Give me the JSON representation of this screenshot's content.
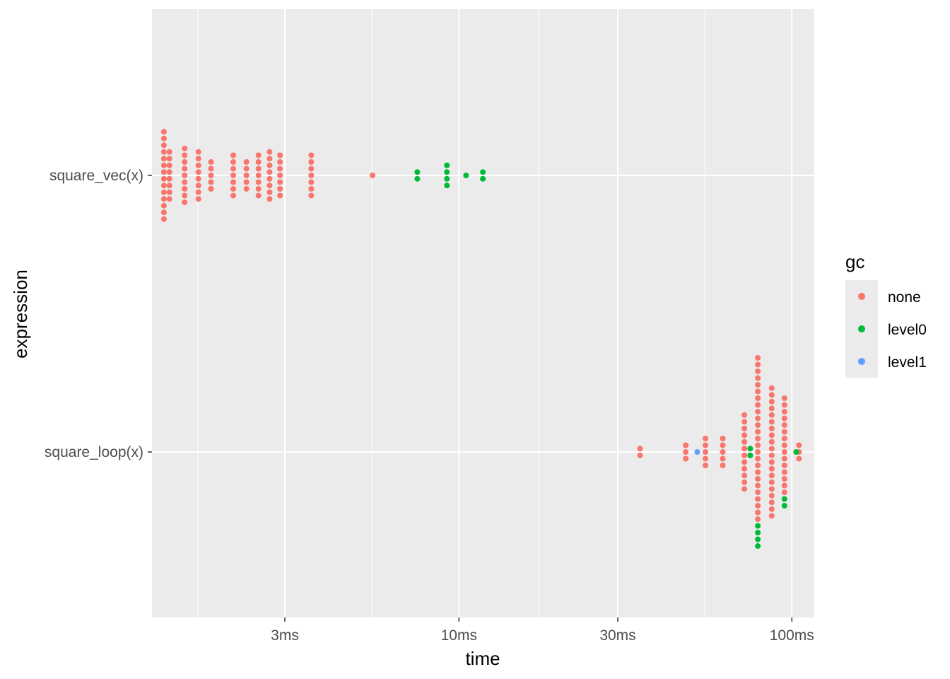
{
  "chart_data": {
    "type": "scatter",
    "subtype": "beeswarm",
    "xlabel": "time",
    "ylabel": "expression",
    "x_scale": "log10",
    "x_unit": "ms",
    "xlim": [
      1.0,
      120.0
    ],
    "x_ticks": [
      {
        "value": 3,
        "label": "3ms"
      },
      {
        "value": 10,
        "label": "10ms"
      },
      {
        "value": 30,
        "label": "30ms"
      },
      {
        "value": 100,
        "label": "100ms"
      }
    ],
    "categories": [
      "square_vec(x)",
      "square_loop(x)"
    ],
    "legend": {
      "title": "gc",
      "position": "right"
    },
    "series": [
      {
        "name": "none",
        "color": "#f8766d",
        "points": [
          [
            "square_vec(x)",
            1.3
          ],
          [
            "square_vec(x)",
            1.3
          ],
          [
            "square_vec(x)",
            1.3
          ],
          [
            "square_vec(x)",
            1.3
          ],
          [
            "square_vec(x)",
            1.3
          ],
          [
            "square_vec(x)",
            1.3
          ],
          [
            "square_vec(x)",
            1.3
          ],
          [
            "square_vec(x)",
            1.3
          ],
          [
            "square_vec(x)",
            1.3
          ],
          [
            "square_vec(x)",
            1.3
          ],
          [
            "square_vec(x)",
            1.3
          ],
          [
            "square_vec(x)",
            1.3
          ],
          [
            "square_vec(x)",
            1.3
          ],
          [
            "square_vec(x)",
            1.3
          ],
          [
            "square_vec(x)",
            1.35
          ],
          [
            "square_vec(x)",
            1.35
          ],
          [
            "square_vec(x)",
            1.35
          ],
          [
            "square_vec(x)",
            1.35
          ],
          [
            "square_vec(x)",
            1.35
          ],
          [
            "square_vec(x)",
            1.35
          ],
          [
            "square_vec(x)",
            1.35
          ],
          [
            "square_vec(x)",
            1.35
          ],
          [
            "square_vec(x)",
            1.5
          ],
          [
            "square_vec(x)",
            1.5
          ],
          [
            "square_vec(x)",
            1.5
          ],
          [
            "square_vec(x)",
            1.5
          ],
          [
            "square_vec(x)",
            1.5
          ],
          [
            "square_vec(x)",
            1.5
          ],
          [
            "square_vec(x)",
            1.5
          ],
          [
            "square_vec(x)",
            1.5
          ],
          [
            "square_vec(x)",
            1.5
          ],
          [
            "square_vec(x)",
            1.65
          ],
          [
            "square_vec(x)",
            1.65
          ],
          [
            "square_vec(x)",
            1.65
          ],
          [
            "square_vec(x)",
            1.65
          ],
          [
            "square_vec(x)",
            1.65
          ],
          [
            "square_vec(x)",
            1.65
          ],
          [
            "square_vec(x)",
            1.65
          ],
          [
            "square_vec(x)",
            1.65
          ],
          [
            "square_vec(x)",
            1.8
          ],
          [
            "square_vec(x)",
            1.8
          ],
          [
            "square_vec(x)",
            1.8
          ],
          [
            "square_vec(x)",
            1.8
          ],
          [
            "square_vec(x)",
            1.8
          ],
          [
            "square_vec(x)",
            2.1
          ],
          [
            "square_vec(x)",
            2.1
          ],
          [
            "square_vec(x)",
            2.1
          ],
          [
            "square_vec(x)",
            2.1
          ],
          [
            "square_vec(x)",
            2.1
          ],
          [
            "square_vec(x)",
            2.1
          ],
          [
            "square_vec(x)",
            2.1
          ],
          [
            "square_vec(x)",
            2.3
          ],
          [
            "square_vec(x)",
            2.3
          ],
          [
            "square_vec(x)",
            2.3
          ],
          [
            "square_vec(x)",
            2.3
          ],
          [
            "square_vec(x)",
            2.3
          ],
          [
            "square_vec(x)",
            2.5
          ],
          [
            "square_vec(x)",
            2.5
          ],
          [
            "square_vec(x)",
            2.5
          ],
          [
            "square_vec(x)",
            2.5
          ],
          [
            "square_vec(x)",
            2.5
          ],
          [
            "square_vec(x)",
            2.5
          ],
          [
            "square_vec(x)",
            2.5
          ],
          [
            "square_vec(x)",
            2.7
          ],
          [
            "square_vec(x)",
            2.7
          ],
          [
            "square_vec(x)",
            2.7
          ],
          [
            "square_vec(x)",
            2.7
          ],
          [
            "square_vec(x)",
            2.7
          ],
          [
            "square_vec(x)",
            2.7
          ],
          [
            "square_vec(x)",
            2.7
          ],
          [
            "square_vec(x)",
            2.7
          ],
          [
            "square_vec(x)",
            2.9
          ],
          [
            "square_vec(x)",
            2.9
          ],
          [
            "square_vec(x)",
            2.9
          ],
          [
            "square_vec(x)",
            2.9
          ],
          [
            "square_vec(x)",
            2.9
          ],
          [
            "square_vec(x)",
            2.9
          ],
          [
            "square_vec(x)",
            2.9
          ],
          [
            "square_vec(x)",
            3.6
          ],
          [
            "square_vec(x)",
            3.6
          ],
          [
            "square_vec(x)",
            3.6
          ],
          [
            "square_vec(x)",
            3.6
          ],
          [
            "square_vec(x)",
            3.6
          ],
          [
            "square_vec(x)",
            3.6
          ],
          [
            "square_vec(x)",
            3.6
          ],
          [
            "square_vec(x)",
            5.5
          ],
          [
            "square_loop(x)",
            35
          ],
          [
            "square_loop(x)",
            35
          ],
          [
            "square_loop(x)",
            48
          ],
          [
            "square_loop(x)",
            48
          ],
          [
            "square_loop(x)",
            48
          ],
          [
            "square_loop(x)",
            55
          ],
          [
            "square_loop(x)",
            55
          ],
          [
            "square_loop(x)",
            55
          ],
          [
            "square_loop(x)",
            55
          ],
          [
            "square_loop(x)",
            55
          ],
          [
            "square_loop(x)",
            62
          ],
          [
            "square_loop(x)",
            62
          ],
          [
            "square_loop(x)",
            62
          ],
          [
            "square_loop(x)",
            62
          ],
          [
            "square_loop(x)",
            62
          ],
          [
            "square_loop(x)",
            72
          ],
          [
            "square_loop(x)",
            72
          ],
          [
            "square_loop(x)",
            72
          ],
          [
            "square_loop(x)",
            72
          ],
          [
            "square_loop(x)",
            72
          ],
          [
            "square_loop(x)",
            72
          ],
          [
            "square_loop(x)",
            72
          ],
          [
            "square_loop(x)",
            72
          ],
          [
            "square_loop(x)",
            72
          ],
          [
            "square_loop(x)",
            72
          ],
          [
            "square_loop(x)",
            72
          ],
          [
            "square_loop(x)",
            72
          ],
          [
            "square_loop(x)",
            79
          ],
          [
            "square_loop(x)",
            79
          ],
          [
            "square_loop(x)",
            79
          ],
          [
            "square_loop(x)",
            79
          ],
          [
            "square_loop(x)",
            79
          ],
          [
            "square_loop(x)",
            79
          ],
          [
            "square_loop(x)",
            79
          ],
          [
            "square_loop(x)",
            79
          ],
          [
            "square_loop(x)",
            79
          ],
          [
            "square_loop(x)",
            79
          ],
          [
            "square_loop(x)",
            79
          ],
          [
            "square_loop(x)",
            79
          ],
          [
            "square_loop(x)",
            79
          ],
          [
            "square_loop(x)",
            79
          ],
          [
            "square_loop(x)",
            79
          ],
          [
            "square_loop(x)",
            79
          ],
          [
            "square_loop(x)",
            79
          ],
          [
            "square_loop(x)",
            79
          ],
          [
            "square_loop(x)",
            79
          ],
          [
            "square_loop(x)",
            79
          ],
          [
            "square_loop(x)",
            79
          ],
          [
            "square_loop(x)",
            79
          ],
          [
            "square_loop(x)",
            79
          ],
          [
            "square_loop(x)",
            79
          ],
          [
            "square_loop(x)",
            79
          ],
          [
            "square_loop(x)",
            87
          ],
          [
            "square_loop(x)",
            87
          ],
          [
            "square_loop(x)",
            87
          ],
          [
            "square_loop(x)",
            87
          ],
          [
            "square_loop(x)",
            87
          ],
          [
            "square_loop(x)",
            87
          ],
          [
            "square_loop(x)",
            87
          ],
          [
            "square_loop(x)",
            87
          ],
          [
            "square_loop(x)",
            87
          ],
          [
            "square_loop(x)",
            87
          ],
          [
            "square_loop(x)",
            87
          ],
          [
            "square_loop(x)",
            87
          ],
          [
            "square_loop(x)",
            87
          ],
          [
            "square_loop(x)",
            87
          ],
          [
            "square_loop(x)",
            87
          ],
          [
            "square_loop(x)",
            87
          ],
          [
            "square_loop(x)",
            87
          ],
          [
            "square_loop(x)",
            87
          ],
          [
            "square_loop(x)",
            87
          ],
          [
            "square_loop(x)",
            87
          ],
          [
            "square_loop(x)",
            95
          ],
          [
            "square_loop(x)",
            95
          ],
          [
            "square_loop(x)",
            95
          ],
          [
            "square_loop(x)",
            95
          ],
          [
            "square_loop(x)",
            95
          ],
          [
            "square_loop(x)",
            95
          ],
          [
            "square_loop(x)",
            95
          ],
          [
            "square_loop(x)",
            95
          ],
          [
            "square_loop(x)",
            95
          ],
          [
            "square_loop(x)",
            95
          ],
          [
            "square_loop(x)",
            95
          ],
          [
            "square_loop(x)",
            95
          ],
          [
            "square_loop(x)",
            95
          ],
          [
            "square_loop(x)",
            95
          ],
          [
            "square_loop(x)",
            95
          ],
          [
            "square_loop(x)",
            105
          ],
          [
            "square_loop(x)",
            105
          ],
          [
            "square_loop(x)",
            105
          ]
        ]
      },
      {
        "name": "level0",
        "color": "#00ba38",
        "points": [
          [
            "square_vec(x)",
            7.5
          ],
          [
            "square_vec(x)",
            7.5
          ],
          [
            "square_vec(x)",
            9.2
          ],
          [
            "square_vec(x)",
            9.2
          ],
          [
            "square_vec(x)",
            9.2
          ],
          [
            "square_vec(x)",
            9.2
          ],
          [
            "square_vec(x)",
            10.5
          ],
          [
            "square_vec(x)",
            11.8
          ],
          [
            "square_vec(x)",
            11.8
          ],
          [
            "square_loop(x)",
            75
          ],
          [
            "square_loop(x)",
            75
          ],
          [
            "square_loop(x)",
            79
          ],
          [
            "square_loop(x)",
            79
          ],
          [
            "square_loop(x)",
            79
          ],
          [
            "square_loop(x)",
            79
          ],
          [
            "square_loop(x)",
            95
          ],
          [
            "square_loop(x)",
            95
          ],
          [
            "square_loop(x)",
            103
          ]
        ]
      },
      {
        "name": "level1",
        "color": "#619cff",
        "points": [
          [
            "square_loop(x)",
            52
          ]
        ]
      }
    ]
  }
}
